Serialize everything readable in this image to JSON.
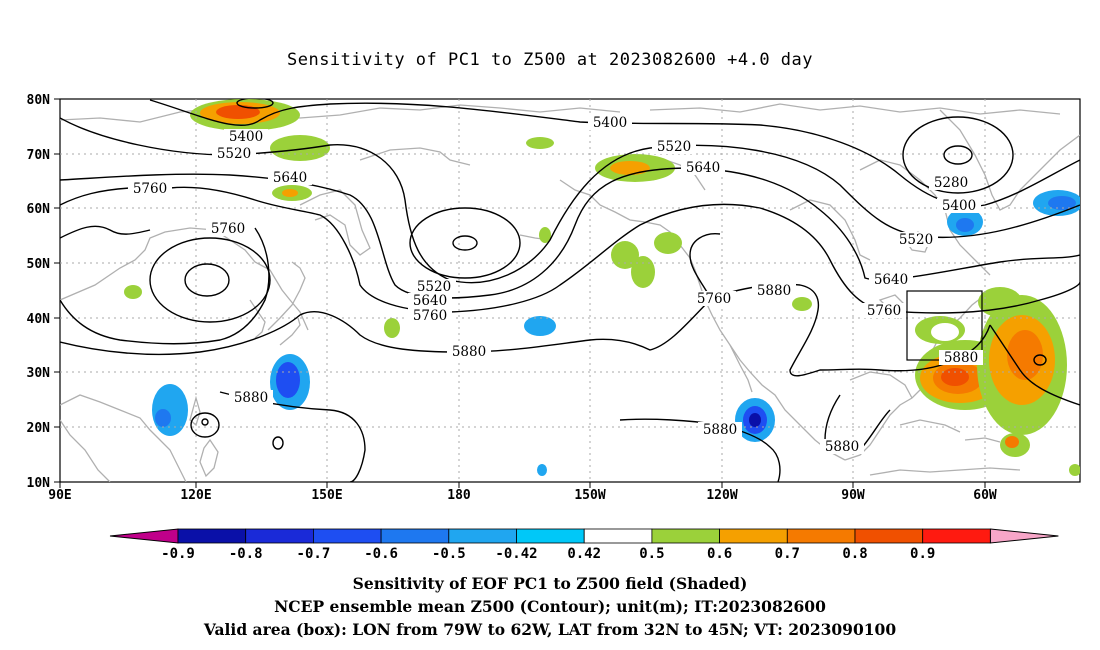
{
  "title": "Sensitivity of PC1 to Z500 at 2023082600 +4.0 day",
  "captions": [
    "Sensitivity of EOF PC1 to Z500 field (Shaded)",
    "NCEP ensemble mean Z500 (Contour); unit(m); IT:2023082600",
    "Valid area (box): LON from 79W to 62W, LAT from 32N to 45N; VT: 2023090100"
  ],
  "axes": {
    "x_ticks": [
      "90E",
      "120E",
      "150E",
      "180",
      "150W",
      "120W",
      "90W",
      "60W"
    ],
    "y_ticks": [
      "80N",
      "70N",
      "60N",
      "50N",
      "40N",
      "30N",
      "20N",
      "10N"
    ]
  },
  "colorbar": {
    "labels": [
      "-0.9",
      "-0.8",
      "-0.7",
      "-0.6",
      "-0.5",
      "-0.42",
      "0.42",
      "0.5",
      "0.6",
      "0.7",
      "0.8",
      "0.9"
    ],
    "colors": [
      "#c0008a",
      "#0a10a8",
      "#1a2ad8",
      "#1e4ef2",
      "#1e78f0",
      "#20a6f0",
      "#00c8f8",
      "#ffffff",
      "#9bd13a",
      "#f5a000",
      "#f57a00",
      "#f05000",
      "#ff1a10",
      "#f7a6c8"
    ]
  },
  "contour_labels": [
    "5400",
    "5520",
    "5640",
    "5760",
    "5880",
    "5280"
  ],
  "valid_box": {
    "lon_min": -79,
    "lon_max": -62,
    "lat_min": 32,
    "lat_max": 45
  },
  "colors": {
    "land_outline": "#b0b0b0",
    "contour": "#000000",
    "grid": "#aaaaaa"
  }
}
